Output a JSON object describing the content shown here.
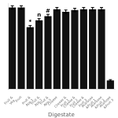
{
  "chart_data": {
    "type": "bar",
    "categories": [
      "Fruit &\nVeg.",
      "Fruit",
      "Fruit &\nApp.1",
      "Fruit &\nApp.2",
      "Fruit &\nApp.3",
      "Cheese",
      "Cheese &\nFruit 1",
      "Cheese &\nFruit 2",
      "Cheese &\nFruit 3",
      "Acarbose\n&Fruit 1",
      "Acarbose\n&Fruit 2",
      "Acarbose\n&Fruit 3"
    ],
    "values": [
      95,
      95,
      72,
      80,
      85,
      93,
      90,
      92,
      93,
      93,
      93,
      10
    ],
    "errors": [
      2,
      2,
      2,
      2,
      2,
      2,
      2,
      2,
      2,
      2,
      2,
      1
    ],
    "annotations": [
      null,
      null,
      "*",
      "n",
      "#",
      null,
      null,
      null,
      null,
      null,
      null,
      null
    ],
    "color": "#111111",
    "x_label": "Digestate",
    "ylim": [
      0,
      100
    ],
    "grid": false,
    "tick_labels": "x"
  }
}
